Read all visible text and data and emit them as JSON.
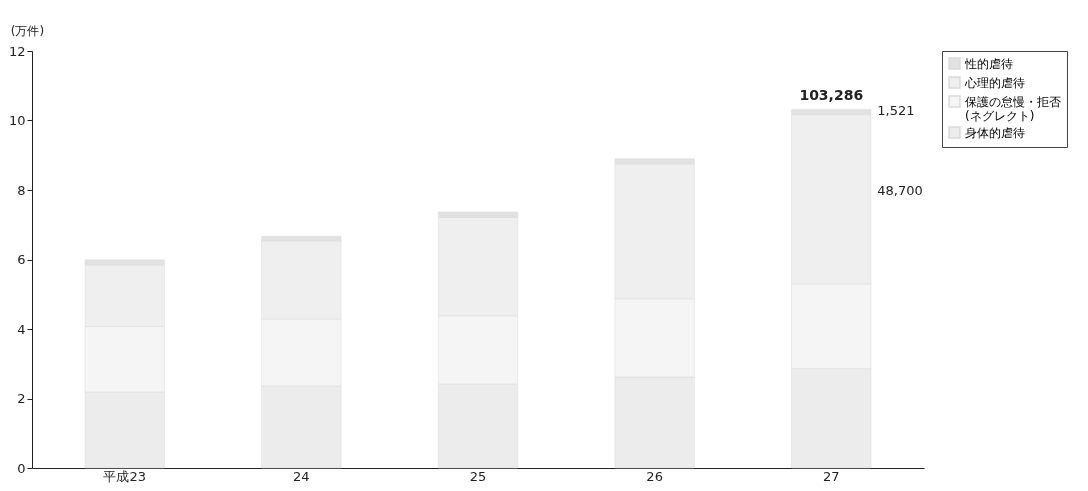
{
  "chart_data": {
    "type": "bar",
    "stacked": true,
    "ylabel": "(万件)",
    "categories": [
      "平成23",
      "24",
      "25",
      "26",
      "27"
    ],
    "ylim": [
      0,
      12
    ],
    "yticks": [
      0,
      2,
      4,
      6,
      8,
      10,
      12
    ],
    "grid": false,
    "legend": "top right",
    "series": [
      {
        "name": "身体的虐待",
        "color": "#ececec",
        "values": [
          2.19,
          2.36,
          2.42,
          2.62,
          2.86
        ]
      },
      {
        "name": "保護の怠慢・拒否\n(ネグレクト)",
        "color": "#f5f5f5",
        "values": [
          1.88,
          1.93,
          1.96,
          2.25,
          2.44
        ]
      },
      {
        "name": "心理的虐待",
        "color": "#efefef",
        "values": [
          1.77,
          2.24,
          2.83,
          3.88,
          4.87
        ]
      },
      {
        "name": "性的虐待",
        "color": "#e2e2e2",
        "values": [
          0.15,
          0.14,
          0.16,
          0.15,
          0.15
        ]
      }
    ],
    "annotations": [
      {
        "text": "103,286",
        "x": "27",
        "y": 10.32
      },
      "1,521",
      "48,700"
    ]
  }
}
